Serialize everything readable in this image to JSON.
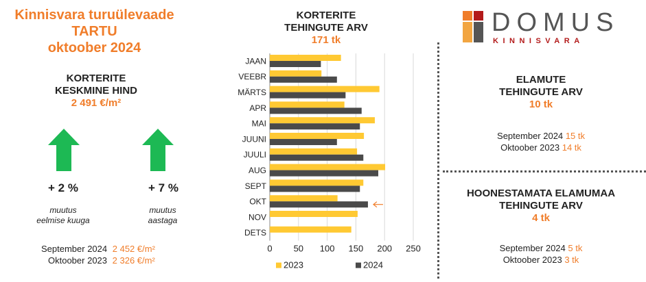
{
  "left": {
    "title_line1": "Kinnisvara turuülevaade",
    "title_line2": "TARTU",
    "title_line3": "oktoober 2024",
    "price_label1": "KORTERITE",
    "price_label2": "KESKMINE HIND",
    "price_value": "2 491 €/m²",
    "change_month": "+ 2 %",
    "change_month_note1": "muutus",
    "change_month_note2": "eelmise kuuga",
    "change_year": "+ 7 %",
    "change_year_note1": "muutus",
    "change_year_note2": "aastaga",
    "cmp1_label": "September 2024",
    "cmp1_value": "2 452 €/m²",
    "cmp2_label": "Oktoober 2023",
    "cmp2_value": "2 326 €/m²",
    "arrow_color": "#1db954"
  },
  "chart_header": {
    "line1": "KORTERITE",
    "line2": "TEHINGUTE ARV",
    "total": "171 tk"
  },
  "chart_data": {
    "type": "bar",
    "orientation": "horizontal",
    "categories": [
      "JAAN",
      "VEEBR",
      "MÄRTS",
      "APR",
      "MAI",
      "JUUNI",
      "JUULI",
      "AUG",
      "SEPT",
      "OKT",
      "NOV",
      "DETS"
    ],
    "series": [
      {
        "name": "2023",
        "color": "#ffc933",
        "values": [
          124,
          90,
          191,
          130,
          183,
          164,
          152,
          201,
          163,
          118,
          153,
          142
        ]
      },
      {
        "name": "2024",
        "color": "#4a4a4a",
        "values": [
          89,
          117,
          132,
          160,
          157,
          117,
          163,
          189,
          157,
          171,
          null,
          null
        ]
      }
    ],
    "xlim": [
      0,
      250
    ],
    "xticks": [
      0,
      50,
      100,
      150,
      200,
      250
    ],
    "grid": true,
    "legend_position": "bottom",
    "highlight_category": "OKT",
    "highlight_color": "#f07d2a"
  },
  "logo": {
    "name": "DOMUS",
    "sub": "KINNISVARA",
    "colors": [
      "#f07d2a",
      "#b31a1a",
      "#f2a541",
      "#555555"
    ]
  },
  "houses": {
    "line1": "ELAMUTE",
    "line2": "TEHINGUTE ARV",
    "total": "10 tk",
    "cmp1_label": "September 2024",
    "cmp1_value": "15 tk",
    "cmp2_label": "Oktoober 2023",
    "cmp2_value": "14 tk"
  },
  "land": {
    "line1": "HOONESTAMATA ELAMUMAA",
    "line2": "TEHINGUTE ARV",
    "total": "4 tk",
    "cmp1_label": "September 2024",
    "cmp1_value": "5 tk",
    "cmp2_label": "Oktoober 2023",
    "cmp2_value": "3 tk"
  }
}
